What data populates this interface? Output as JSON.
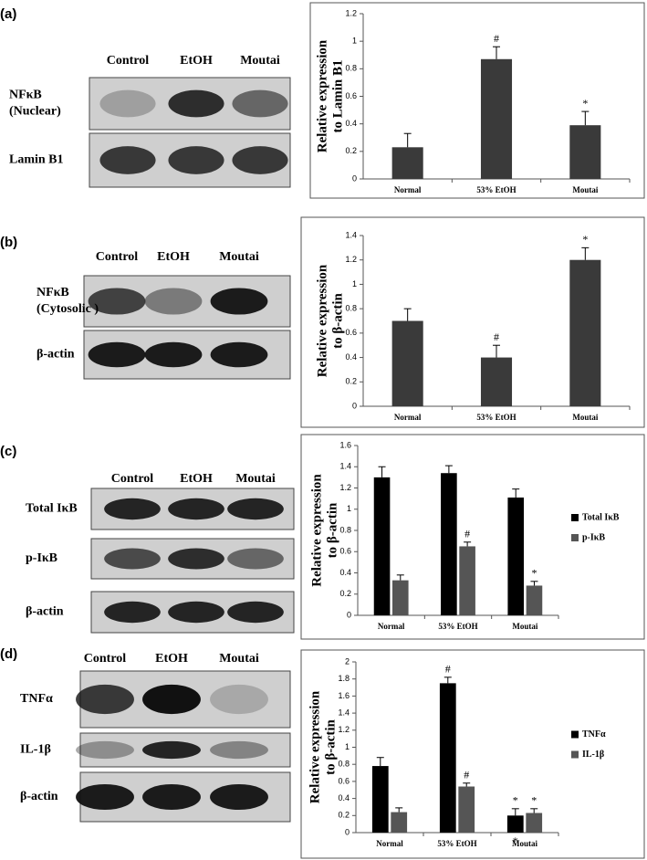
{
  "panels": [
    {
      "label": "(a)",
      "lanes": [
        "Control",
        "EtOH",
        "Moutai"
      ],
      "rows": [
        [
          "NFκB",
          "(Nuclear)"
        ],
        [
          "Lamin B1"
        ]
      ]
    },
    {
      "label": "(b)",
      "lanes": [
        "Control",
        "EtOH",
        "Moutai"
      ],
      "rows": [
        [
          "NFκB",
          "(Cytosolic )"
        ],
        [
          "β-actin"
        ]
      ]
    },
    {
      "label": "(c)",
      "lanes": [
        "Control",
        "EtOH",
        "Moutai"
      ],
      "rows": [
        [
          "Total IκB"
        ],
        [
          "p-IκB"
        ],
        [
          "β-actin"
        ]
      ]
    },
    {
      "label": "(d)",
      "lanes": [
        "Control",
        "EtOH",
        "Moutai"
      ],
      "rows": [
        [
          "TNFα"
        ],
        [
          "IL-1β"
        ],
        [
          "β-actin"
        ]
      ]
    }
  ],
  "chart_data": [
    {
      "type": "bar",
      "y_label": [
        "Relative expression",
        "to Lamin B1"
      ],
      "categories": [
        "Normal",
        "53% EtOH",
        "Moutai"
      ],
      "values": [
        0.23,
        0.87,
        0.39
      ],
      "errors": [
        0.1,
        0.09,
        0.1
      ],
      "annotations": [
        null,
        "#",
        "*"
      ],
      "color": "#3a3a3a",
      "ylim": [
        0,
        1.2
      ],
      "yticks": [
        0,
        0.2,
        0.4,
        0.6,
        0.8,
        1,
        1.2
      ]
    },
    {
      "type": "bar",
      "y_label": [
        "Relative expression",
        "to β-actin"
      ],
      "categories": [
        "Normal",
        "53% EtOH",
        "Moutai"
      ],
      "values": [
        0.7,
        0.4,
        1.2
      ],
      "errors": [
        0.1,
        0.1,
        0.1
      ],
      "annotations": [
        null,
        "#",
        "*"
      ],
      "color": "#3a3a3a",
      "ylim": [
        0,
        1.4
      ],
      "yticks": [
        0,
        0.2,
        0.4,
        0.6,
        0.8,
        1,
        1.2,
        1.4
      ]
    },
    {
      "type": "bar",
      "y_label": [
        "Relative expression",
        "to β-actin"
      ],
      "categories": [
        "Normal",
        "53% EtOH",
        "Moutai"
      ],
      "series": [
        {
          "name": "Total IκB",
          "color": "#000000",
          "values": [
            1.3,
            1.34,
            1.11
          ],
          "errors": [
            0.1,
            0.07,
            0.08
          ],
          "annotations": [
            null,
            null,
            null
          ]
        },
        {
          "name": "p-IκB",
          "color": "#555555",
          "values": [
            0.33,
            0.65,
            0.28
          ],
          "errors": [
            0.05,
            0.04,
            0.04
          ],
          "annotations": [
            null,
            "#",
            "*"
          ]
        }
      ],
      "legend": "right",
      "ylim": [
        0,
        1.6
      ],
      "yticks": [
        0,
        0.2,
        0.4,
        0.6,
        0.8,
        1,
        1.2,
        1.4,
        1.6
      ]
    },
    {
      "type": "bar",
      "y_label": [
        "Relative expression",
        "to β-actin"
      ],
      "categories": [
        "Normal",
        "53% EtOH",
        "Moutai"
      ],
      "series": [
        {
          "name": "TNFα",
          "color": "#000000",
          "values": [
            0.78,
            1.75,
            0.2
          ],
          "errors": [
            0.1,
            0.07,
            0.08
          ],
          "annotations": [
            null,
            "#",
            "*"
          ],
          "below_annotations": [
            null,
            null,
            "*"
          ]
        },
        {
          "name": "IL-1β",
          "color": "#555555",
          "values": [
            0.24,
            0.54,
            0.23
          ],
          "errors": [
            0.05,
            0.04,
            0.05
          ],
          "annotations": [
            null,
            "#",
            "*"
          ]
        }
      ],
      "legend": "right",
      "ylim": [
        0,
        2
      ],
      "yticks": [
        0,
        0.2,
        0.4,
        0.6,
        0.8,
        1,
        1.2,
        1.4,
        1.6,
        1.8,
        2
      ]
    }
  ]
}
